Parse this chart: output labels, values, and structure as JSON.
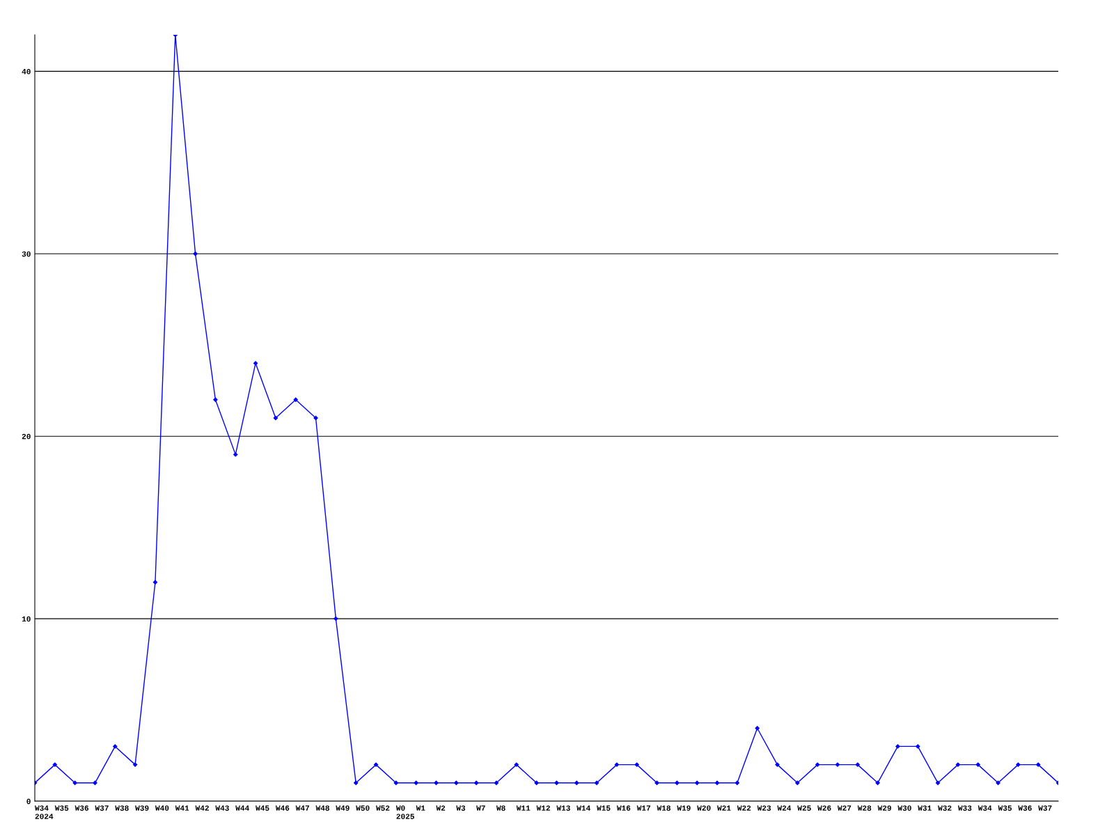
{
  "chart_data": {
    "type": "line",
    "categories": [
      "W34\n2024",
      "W35",
      "W36",
      "W37",
      "W38",
      "W39",
      "W40",
      "W41",
      "W42",
      "W43",
      "W44",
      "W45",
      "W46",
      "W47",
      "W48",
      "W49",
      "W50",
      "W52",
      "W0\n2025",
      "W1",
      "W2",
      "W3",
      "W7",
      "W8",
      "W11",
      "W12",
      "W13",
      "W14",
      "W15",
      "W16",
      "W17",
      "W18",
      "W19",
      "W20",
      "W21",
      "W22",
      "W23",
      "W24",
      "W25",
      "W26",
      "W27",
      "W28",
      "W29",
      "W30",
      "W31",
      "W32",
      "W33",
      "W34",
      "W35",
      "W36",
      "W37",
      null
    ],
    "series": [
      {
        "color": "#0000ff",
        "values": [
          1,
          2,
          1,
          1,
          3,
          2,
          12,
          42,
          30,
          22,
          19,
          24,
          21,
          22,
          21,
          10,
          1,
          2,
          1,
          1,
          1,
          1,
          1,
          1,
          2,
          1,
          1,
          1,
          1,
          2,
          2,
          1,
          1,
          1,
          1,
          1,
          4,
          2,
          1,
          2,
          2,
          2,
          1,
          3,
          3,
          1,
          2,
          2,
          1,
          2,
          2,
          1
        ]
      }
    ],
    "ylim": [
      0,
      42
    ],
    "yticks": [
      0,
      10,
      20,
      30,
      40
    ],
    "grid": "y",
    "marker": "diamond",
    "line_style": "solid",
    "legend": false
  }
}
